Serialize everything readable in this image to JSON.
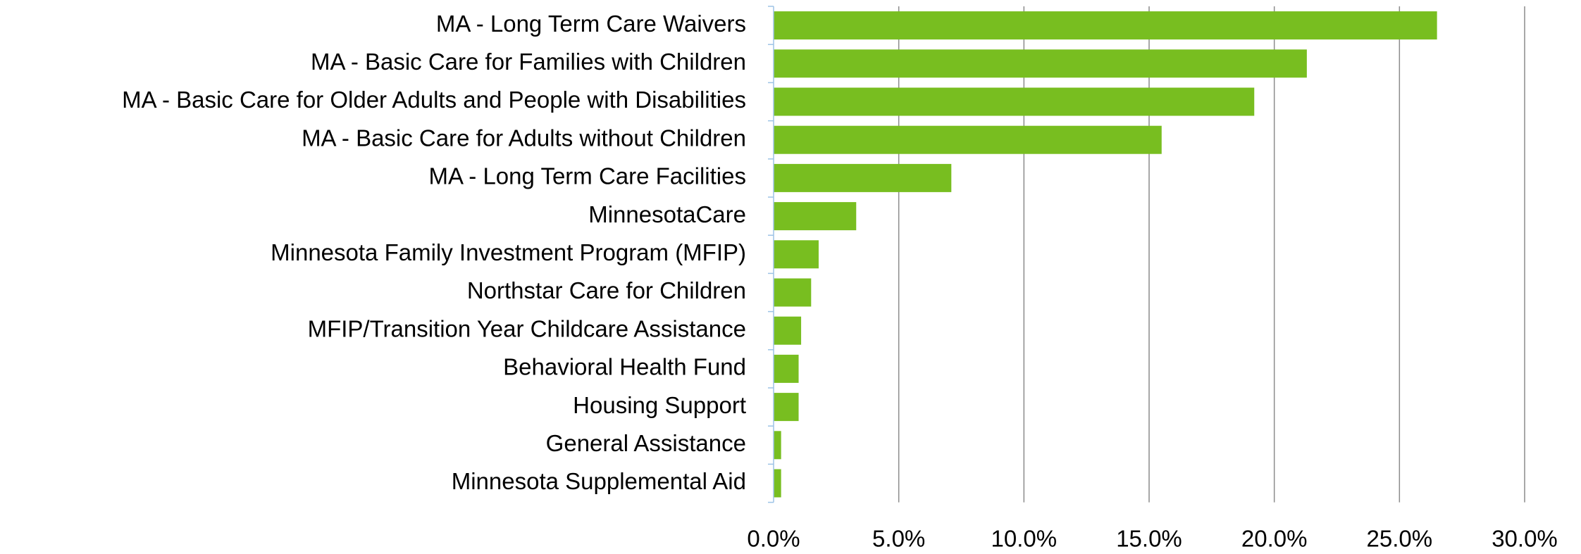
{
  "chart_data": {
    "type": "bar",
    "orientation": "horizontal",
    "categories": [
      "MA - Long Term Care Waivers",
      "MA - Basic Care for Families with Children",
      "MA - Basic Care for Older Adults and People with Disabilities",
      "MA - Basic Care for Adults without Children",
      "MA - Long Term Care Facilities",
      "MinnesotaCare",
      "Minnesota Family Investment Program (MFIP)",
      "Northstar Care for Children",
      "MFIP/Transition Year Childcare Assistance",
      "Behavioral Health Fund",
      "Housing Support",
      "General Assistance",
      "Minnesota Supplemental Aid"
    ],
    "values": [
      26.5,
      21.3,
      19.2,
      15.5,
      7.1,
      3.3,
      1.8,
      1.5,
      1.1,
      1.0,
      1.0,
      0.3,
      0.3
    ],
    "color": "#78be20",
    "xlim": [
      0,
      30
    ],
    "xticks": [
      {
        "value": 0,
        "label": "0.0%"
      },
      {
        "value": 5,
        "label": "5.0%"
      },
      {
        "value": 10,
        "label": "10.0%"
      },
      {
        "value": 15,
        "label": "15.0%"
      },
      {
        "value": 20,
        "label": "20.0%"
      },
      {
        "value": 25,
        "label": "25.0%"
      },
      {
        "value": 30,
        "label": "30.0%"
      }
    ],
    "grid": true
  }
}
